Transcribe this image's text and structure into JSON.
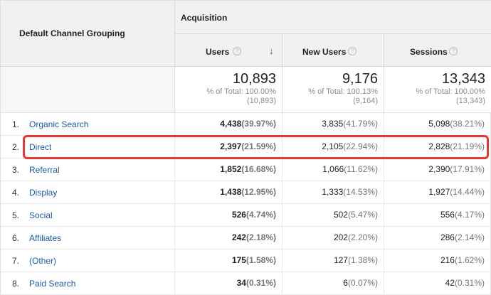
{
  "header": {
    "dimension_label": "Default Channel Grouping",
    "group_label": "Acquisition",
    "columns": [
      {
        "label": "Users",
        "help": "?",
        "sort": "↓"
      },
      {
        "label": "New Users",
        "help": "?"
      },
      {
        "label": "Sessions",
        "help": "?"
      }
    ]
  },
  "totals": [
    {
      "value": "10,893",
      "pct_label": "% of Total: 100.00%",
      "abs": "(10,893)"
    },
    {
      "value": "9,176",
      "pct_label": "% of Total: 100.13%",
      "abs": "(9,164)"
    },
    {
      "value": "13,343",
      "pct_label": "% of Total: 100.00%",
      "abs": "(13,343)"
    }
  ],
  "rows": [
    {
      "index": "1.",
      "name": "Organic Search",
      "users": "4,438",
      "users_pct": "(39.97%)",
      "new_users": "3,835",
      "new_users_pct": "(41.79%)",
      "sessions": "5,098",
      "sessions_pct": "(38.21%)"
    },
    {
      "index": "2.",
      "name": "Direct",
      "users": "2,397",
      "users_pct": "(21.59%)",
      "new_users": "2,105",
      "new_users_pct": "(22.94%)",
      "sessions": "2,828",
      "sessions_pct": "(21.19%)"
    },
    {
      "index": "3.",
      "name": "Referral",
      "users": "1,852",
      "users_pct": "(16.68%)",
      "new_users": "1,066",
      "new_users_pct": "(11.62%)",
      "sessions": "2,390",
      "sessions_pct": "(17.91%)"
    },
    {
      "index": "4.",
      "name": "Display",
      "users": "1,438",
      "users_pct": "(12.95%)",
      "new_users": "1,333",
      "new_users_pct": "(14.53%)",
      "sessions": "1,927",
      "sessions_pct": "(14.44%)"
    },
    {
      "index": "5.",
      "name": "Social",
      "users": "526",
      "users_pct": "(4.74%)",
      "new_users": "502",
      "new_users_pct": "(5.47%)",
      "sessions": "556",
      "sessions_pct": "(4.17%)"
    },
    {
      "index": "6.",
      "name": "Affiliates",
      "users": "242",
      "users_pct": "(2.18%)",
      "new_users": "202",
      "new_users_pct": "(2.20%)",
      "sessions": "286",
      "sessions_pct": "(2.14%)"
    },
    {
      "index": "7.",
      "name": "(Other)",
      "users": "175",
      "users_pct": "(1.58%)",
      "new_users": "127",
      "new_users_pct": "(1.38%)",
      "sessions": "216",
      "sessions_pct": "(1.62%)"
    },
    {
      "index": "8.",
      "name": "Paid Search",
      "users": "34",
      "users_pct": "(0.31%)",
      "new_users": "6",
      "new_users_pct": "(0.07%)",
      "sessions": "42",
      "sessions_pct": "(0.31%)"
    }
  ],
  "colors": {
    "highlight": "#e53935",
    "link": "#1a5ba6",
    "header_bg": "#f1f1f1"
  }
}
